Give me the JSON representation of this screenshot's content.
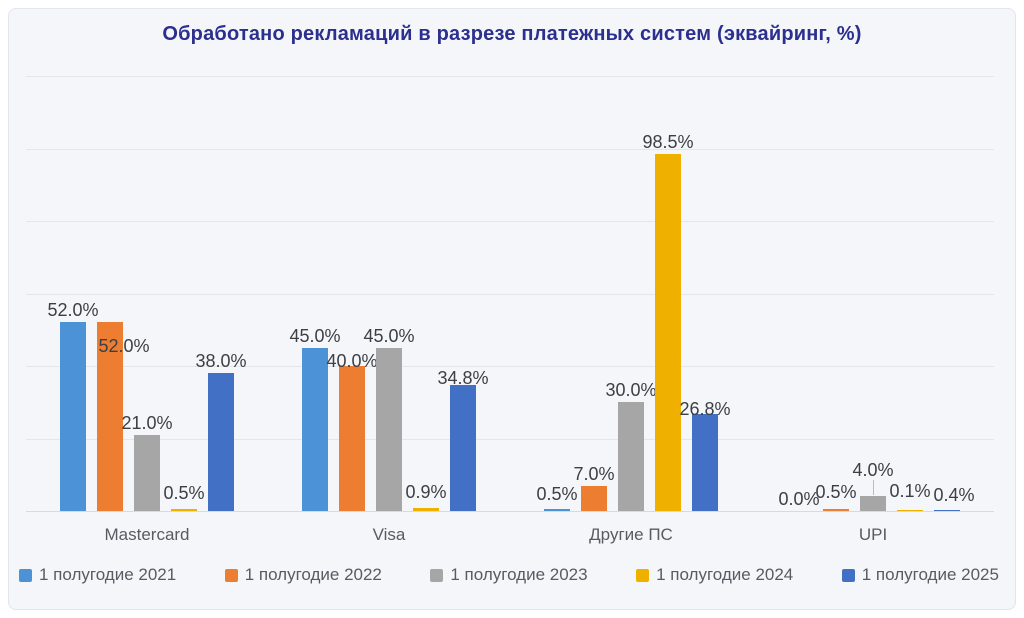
{
  "title": "Обработано рекламаций в разрезе платежных систем (эквайринг, %)",
  "colors": {
    "title": "#2b2f8e",
    "panel_background": "#f4f6fa",
    "panel_border": "#e2e5ec",
    "gridline": "#e3e6eb",
    "axis_line": "#d7dae1",
    "value_label_text": "#3c4045",
    "muted_text": "#575b62"
  },
  "chart_data": {
    "type": "bar",
    "title": "Обработано рекламаций в разрезе платежных систем (эквайринг, %)",
    "categories": [
      "Mastercard",
      "Visa",
      "Другие ПС",
      "UPI"
    ],
    "series": [
      {
        "name": "1 полугодие 2021",
        "color": "#4b92d6",
        "values": [
          52.0,
          45.0,
          0.5,
          0.0
        ]
      },
      {
        "name": "1 полугодие 2022",
        "color": "#ed7d31",
        "values": [
          52.0,
          40.0,
          7.0,
          0.5
        ]
      },
      {
        "name": "1 полугодие 2023",
        "color": "#a6a6a6",
        "values": [
          21.0,
          45.0,
          30.0,
          4.0
        ]
      },
      {
        "name": "1 полугодие 2024",
        "color": "#f0b000",
        "values": [
          0.5,
          0.9,
          98.5,
          0.1
        ]
      },
      {
        "name": "1 полугодие 2025",
        "color": "#4170c4",
        "values": [
          38.0,
          34.8,
          26.8,
          0.4
        ]
      }
    ],
    "data_labels_visible": true,
    "label_format": "{value:.1f}%",
    "xlabel": "",
    "ylabel": "",
    "ylim": [
      0,
      120
    ],
    "grid_step": 20,
    "y_tick_labels_visible": false,
    "grid": true,
    "legend_position": "bottom",
    "label_offsets": {
      "1,0": {
        "dx": 14,
        "dy": 36
      },
      "1,1": {
        "dy": 7
      },
      "3,0": {
        "dy": -4
      },
      "3,1": {
        "dy": -4
      },
      "0,2": {
        "dy": -3
      },
      "4,1": {
        "dy": 5
      },
      "4,2": {
        "dy": 7
      },
      "1,3": {
        "dy": -5
      },
      "2,3": {
        "dy": -14,
        "leader": true
      },
      "3,3": {
        "dy": -7
      },
      "4,3": {
        "dx": 7,
        "dy": -3
      }
    }
  }
}
